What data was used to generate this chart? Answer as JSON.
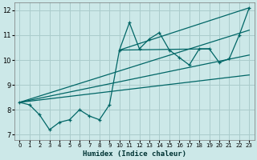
{
  "xlabel": "Humidex (Indice chaleur)",
  "ylabel": "",
  "bg_color": "#cce8e8",
  "grid_color": "#aacccc",
  "line_color": "#006666",
  "xlim": [
    -0.5,
    23.5
  ],
  "ylim": [
    6.8,
    12.3
  ],
  "xticks": [
    0,
    1,
    2,
    3,
    4,
    5,
    6,
    7,
    8,
    9,
    10,
    11,
    12,
    13,
    14,
    15,
    16,
    17,
    18,
    19,
    20,
    21,
    22,
    23
  ],
  "yticks": [
    7,
    8,
    9,
    10,
    11,
    12
  ],
  "scatter_x": [
    0,
    1,
    2,
    3,
    4,
    5,
    6,
    7,
    8,
    9,
    10,
    11,
    12,
    13,
    14,
    15,
    16,
    17,
    18,
    19,
    20,
    21,
    22,
    23
  ],
  "scatter_y": [
    8.3,
    8.2,
    7.8,
    7.2,
    7.5,
    7.6,
    8.0,
    7.75,
    7.6,
    8.2,
    10.4,
    11.5,
    10.45,
    10.85,
    11.1,
    10.4,
    10.1,
    9.8,
    10.45,
    10.45,
    9.9,
    10.05,
    11.0,
    12.1
  ],
  "line1_x": [
    0,
    23
  ],
  "line1_y": [
    8.3,
    11.2
  ],
  "line2_x": [
    0,
    23
  ],
  "line2_y": [
    8.3,
    10.2
  ],
  "line3_x": [
    0,
    23
  ],
  "line3_y": [
    8.3,
    9.4
  ],
  "line4_x": [
    10,
    23
  ],
  "line4_y": [
    10.4,
    12.1
  ],
  "line5_x": [
    10,
    19
  ],
  "line5_y": [
    10.4,
    10.45
  ]
}
